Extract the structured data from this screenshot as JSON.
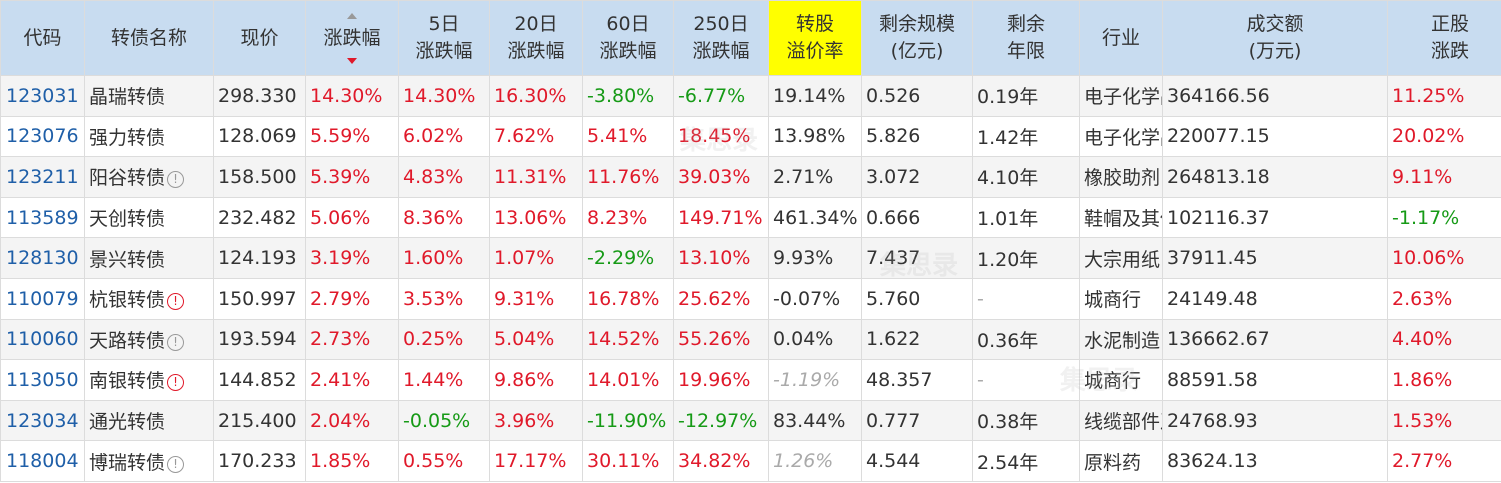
{
  "headers": {
    "code": "代码",
    "name": "转债名称",
    "price": "现价",
    "change": "涨跌幅",
    "d5_1": "5日",
    "d5_2": "涨跌幅",
    "d20_1": "20日",
    "d20_2": "涨跌幅",
    "d60_1": "60日",
    "d60_2": "涨跌幅",
    "d250_1": "250日",
    "d250_2": "涨跌幅",
    "premium_1": "转股",
    "premium_2": "溢价率",
    "scale_1": "剩余规模",
    "scale_2": "(亿元)",
    "years_1": "剩余",
    "years_2": "年限",
    "industry": "行业",
    "volume_1": "成交额",
    "volume_2": "(万元)",
    "stock_1": "正股",
    "stock_2": "涨跌"
  },
  "colors": {
    "header_bg": "#c8dcf0",
    "highlight": "#ffff00",
    "up": "#e0192a",
    "down": "#169a16",
    "link": "#1f5fa8"
  },
  "rows": [
    {
      "code": "123031",
      "name": "晶瑞转债",
      "icon": "",
      "price": "298.330",
      "change": "14.30%",
      "d5": "14.30%",
      "d20": "16.30%",
      "d60": "-3.80%",
      "d250": "-6.77%",
      "premium": "19.14%",
      "scale": "0.526",
      "years": "0.19年",
      "industry": "电子化学品",
      "volume": "364166.56",
      "stock": "11.25%"
    },
    {
      "code": "123076",
      "name": "强力转债",
      "icon": "",
      "price": "128.069",
      "change": "5.59%",
      "d5": "6.02%",
      "d20": "7.62%",
      "d60": "5.41%",
      "d250": "18.45%",
      "premium": "13.98%",
      "scale": "5.826",
      "years": "1.42年",
      "industry": "电子化学品",
      "volume": "220077.15",
      "stock": "20.02%"
    },
    {
      "code": "123211",
      "name": "阳谷转债",
      "icon": "grey",
      "price": "158.500",
      "change": "5.39%",
      "d5": "4.83%",
      "d20": "11.31%",
      "d60": "11.76%",
      "d250": "39.03%",
      "premium": "2.71%",
      "scale": "3.072",
      "years": "4.10年",
      "industry": "橡胶助剂",
      "volume": "264813.18",
      "stock": "9.11%"
    },
    {
      "code": "113589",
      "name": "天创转债",
      "icon": "",
      "price": "232.482",
      "change": "5.06%",
      "d5": "8.36%",
      "d20": "13.06%",
      "d60": "8.23%",
      "d250": "149.71%",
      "premium": "461.34%",
      "scale": "0.666",
      "years": "1.01年",
      "industry": "鞋帽及其他",
      "volume": "102116.37",
      "stock": "-1.17%"
    },
    {
      "code": "128130",
      "name": "景兴转债",
      "icon": "",
      "price": "124.193",
      "change": "3.19%",
      "d5": "1.60%",
      "d20": "1.07%",
      "d60": "-2.29%",
      "d250": "13.10%",
      "premium": "9.93%",
      "scale": "7.437",
      "years": "1.20年",
      "industry": "大宗用纸",
      "volume": "37911.45",
      "stock": "10.06%"
    },
    {
      "code": "110079",
      "name": "杭银转债",
      "icon": "red",
      "price": "150.997",
      "change": "2.79%",
      "d5": "3.53%",
      "d20": "9.31%",
      "d60": "16.78%",
      "d250": "25.62%",
      "premium": "-0.07%",
      "scale": "5.760",
      "years": "-",
      "industry": "城商行",
      "volume": "24149.48",
      "stock": "2.63%"
    },
    {
      "code": "110060",
      "name": "天路转债",
      "icon": "grey",
      "price": "193.594",
      "change": "2.73%",
      "d5": "0.25%",
      "d20": "5.04%",
      "d60": "14.52%",
      "d250": "55.26%",
      "premium": "0.04%",
      "scale": "1.622",
      "years": "0.36年",
      "industry": "水泥制造",
      "volume": "136662.67",
      "stock": "4.40%"
    },
    {
      "code": "113050",
      "name": "南银转债",
      "icon": "red",
      "price": "144.852",
      "change": "2.41%",
      "d5": "1.44%",
      "d20": "9.86%",
      "d60": "14.01%",
      "d250": "19.96%",
      "premium": "-1.19%",
      "scale": "48.357",
      "years": "-",
      "industry": "城商行",
      "volume": "88591.58",
      "stock": "1.86%"
    },
    {
      "code": "123034",
      "name": "通光转债",
      "icon": "",
      "price": "215.400",
      "change": "2.04%",
      "d5": "-0.05%",
      "d20": "3.96%",
      "d60": "-11.90%",
      "d250": "-12.97%",
      "premium": "83.44%",
      "scale": "0.777",
      "years": "0.38年",
      "industry": "线缆部件及其他",
      "volume": "24768.93",
      "stock": "1.53%"
    },
    {
      "code": "118004",
      "name": "博瑞转债",
      "icon": "grey",
      "price": "170.233",
      "change": "1.85%",
      "d5": "0.55%",
      "d20": "17.17%",
      "d60": "30.11%",
      "d250": "34.82%",
      "premium": "1.26%",
      "scale": "4.544",
      "years": "2.54年",
      "industry": "原料药",
      "volume": "83624.13",
      "stock": "2.77%"
    }
  ]
}
